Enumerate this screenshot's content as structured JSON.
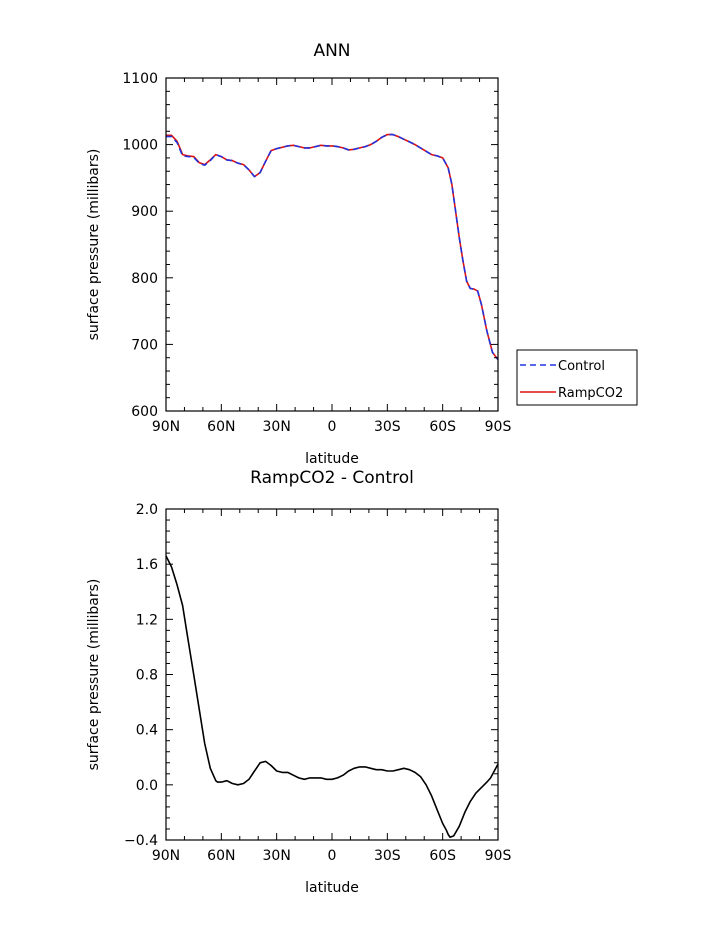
{
  "chart_data": [
    {
      "type": "line",
      "title": "ANN",
      "xlabel": "latitude",
      "ylabel": "surface pressure (millibars)",
      "xlim": [
        90,
        -90
      ],
      "ylim": [
        600,
        1100
      ],
      "x_ticks": [
        90,
        60,
        30,
        0,
        -30,
        -60,
        -90
      ],
      "x_tick_labels": [
        "90N",
        "60N",
        "30N",
        "0",
        "30S",
        "60S",
        "90S"
      ],
      "y_ticks": [
        600,
        700,
        800,
        900,
        1000,
        1100
      ],
      "y_tick_labels": [
        "600",
        "700",
        "800",
        "900",
        "1000",
        "1100"
      ],
      "legend": "right",
      "series": [
        {
          "name": "Control",
          "color": "#2233dd",
          "dash": "dashed",
          "x": [
            90,
            87,
            84,
            81,
            78,
            75,
            72,
            69,
            66,
            63,
            60,
            57,
            54,
            51,
            48,
            45,
            42,
            39,
            36,
            33,
            30,
            27,
            24,
            21,
            18,
            15,
            12,
            9,
            6,
            3,
            0,
            -3,
            -6,
            -9,
            -12,
            -15,
            -18,
            -21,
            -24,
            -27,
            -30,
            -33,
            -36,
            -39,
            -42,
            -45,
            -48,
            -51,
            -54,
            -57,
            -60,
            -63,
            -65,
            -67,
            -69,
            -71,
            -73,
            -75,
            -77,
            -79,
            -81,
            -84,
            -87,
            -90
          ],
          "y": [
            1012,
            1012,
            1003,
            983,
            982,
            981,
            972,
            969,
            976,
            985,
            982,
            977,
            976,
            972,
            970,
            962,
            952,
            958,
            975,
            991,
            994,
            996,
            998,
            999,
            997,
            995,
            995,
            997,
            999,
            998,
            998,
            997,
            995,
            992,
            993,
            995,
            997,
            1000,
            1005,
            1011,
            1015,
            1015,
            1012,
            1008,
            1004,
            1000,
            995,
            990,
            985,
            983,
            980,
            965,
            940,
            900,
            860,
            825,
            795,
            784,
            783,
            780,
            760,
            720,
            688,
            677
          ]
        },
        {
          "name": "RampCO2",
          "color": "#dd1111",
          "dash": "solid",
          "x": [
            90,
            87,
            84,
            81,
            78,
            75,
            72,
            69,
            66,
            63,
            60,
            57,
            54,
            51,
            48,
            45,
            42,
            39,
            36,
            33,
            30,
            27,
            24,
            21,
            18,
            15,
            12,
            9,
            6,
            3,
            0,
            -3,
            -6,
            -9,
            -12,
            -15,
            -18,
            -21,
            -24,
            -27,
            -30,
            -33,
            -36,
            -39,
            -42,
            -45,
            -48,
            -51,
            -54,
            -57,
            -60,
            -63,
            -65,
            -67,
            -69,
            -71,
            -73,
            -75,
            -77,
            -79,
            -81,
            -84,
            -87,
            -90
          ],
          "y": [
            1014,
            1014,
            1005,
            985,
            983,
            982,
            973,
            970,
            977,
            985,
            982,
            977,
            976,
            972,
            970,
            962,
            952,
            958,
            975,
            991,
            994,
            996,
            998,
            999,
            997,
            995,
            995,
            997,
            999,
            998,
            998,
            997,
            995,
            992,
            993,
            995,
            997,
            1000,
            1005,
            1011,
            1015,
            1015,
            1012,
            1008,
            1004,
            1000,
            995,
            990,
            985,
            983,
            980,
            965,
            940,
            900,
            860,
            825,
            795,
            784,
            783,
            780,
            760,
            720,
            688,
            677
          ]
        }
      ]
    },
    {
      "type": "line",
      "title": "RampCO2 - Control",
      "xlabel": "latitude",
      "ylabel": "surface pressure (millibars)",
      "xlim": [
        90,
        -90
      ],
      "ylim": [
        -0.4,
        2.0
      ],
      "x_ticks": [
        90,
        60,
        30,
        0,
        -30,
        -60,
        -90
      ],
      "x_tick_labels": [
        "90N",
        "60N",
        "30N",
        "0",
        "30S",
        "60S",
        "90S"
      ],
      "y_ticks": [
        -0.4,
        0.0,
        0.4,
        0.8,
        1.2,
        1.6,
        2.0
      ],
      "y_tick_labels": [
        "−0.4",
        "0.0",
        "0.4",
        "0.8",
        "1.2",
        "1.6",
        "2.0"
      ],
      "series": [
        {
          "color": "#000000",
          "dash": "solid",
          "x": [
            90,
            87,
            84,
            81,
            78,
            75,
            72,
            69,
            66,
            63,
            62,
            60,
            57,
            54,
            51,
            48,
            45,
            42,
            39,
            36,
            33,
            30,
            27,
            24,
            21,
            18,
            15,
            12,
            9,
            6,
            3,
            0,
            -3,
            -6,
            -9,
            -12,
            -15,
            -18,
            -21,
            -24,
            -27,
            -30,
            -33,
            -36,
            -39,
            -42,
            -45,
            -48,
            -51,
            -54,
            -57,
            -60,
            -62,
            -63,
            -64,
            -66,
            -69,
            -72,
            -75,
            -78,
            -81,
            -84,
            -86,
            -88,
            -90
          ],
          "y": [
            1.66,
            1.58,
            1.45,
            1.3,
            1.05,
            0.8,
            0.55,
            0.3,
            0.12,
            0.03,
            0.02,
            0.02,
            0.03,
            0.01,
            0.0,
            0.01,
            0.04,
            0.1,
            0.16,
            0.17,
            0.14,
            0.1,
            0.09,
            0.09,
            0.07,
            0.05,
            0.04,
            0.05,
            0.05,
            0.05,
            0.04,
            0.04,
            0.05,
            0.07,
            0.1,
            0.12,
            0.13,
            0.13,
            0.12,
            0.11,
            0.11,
            0.1,
            0.1,
            0.11,
            0.12,
            0.11,
            0.09,
            0.06,
            0.0,
            -0.08,
            -0.18,
            -0.28,
            -0.33,
            -0.36,
            -0.38,
            -0.37,
            -0.3,
            -0.2,
            -0.12,
            -0.06,
            -0.02,
            0.02,
            0.05,
            0.1,
            0.15
          ]
        }
      ]
    }
  ]
}
